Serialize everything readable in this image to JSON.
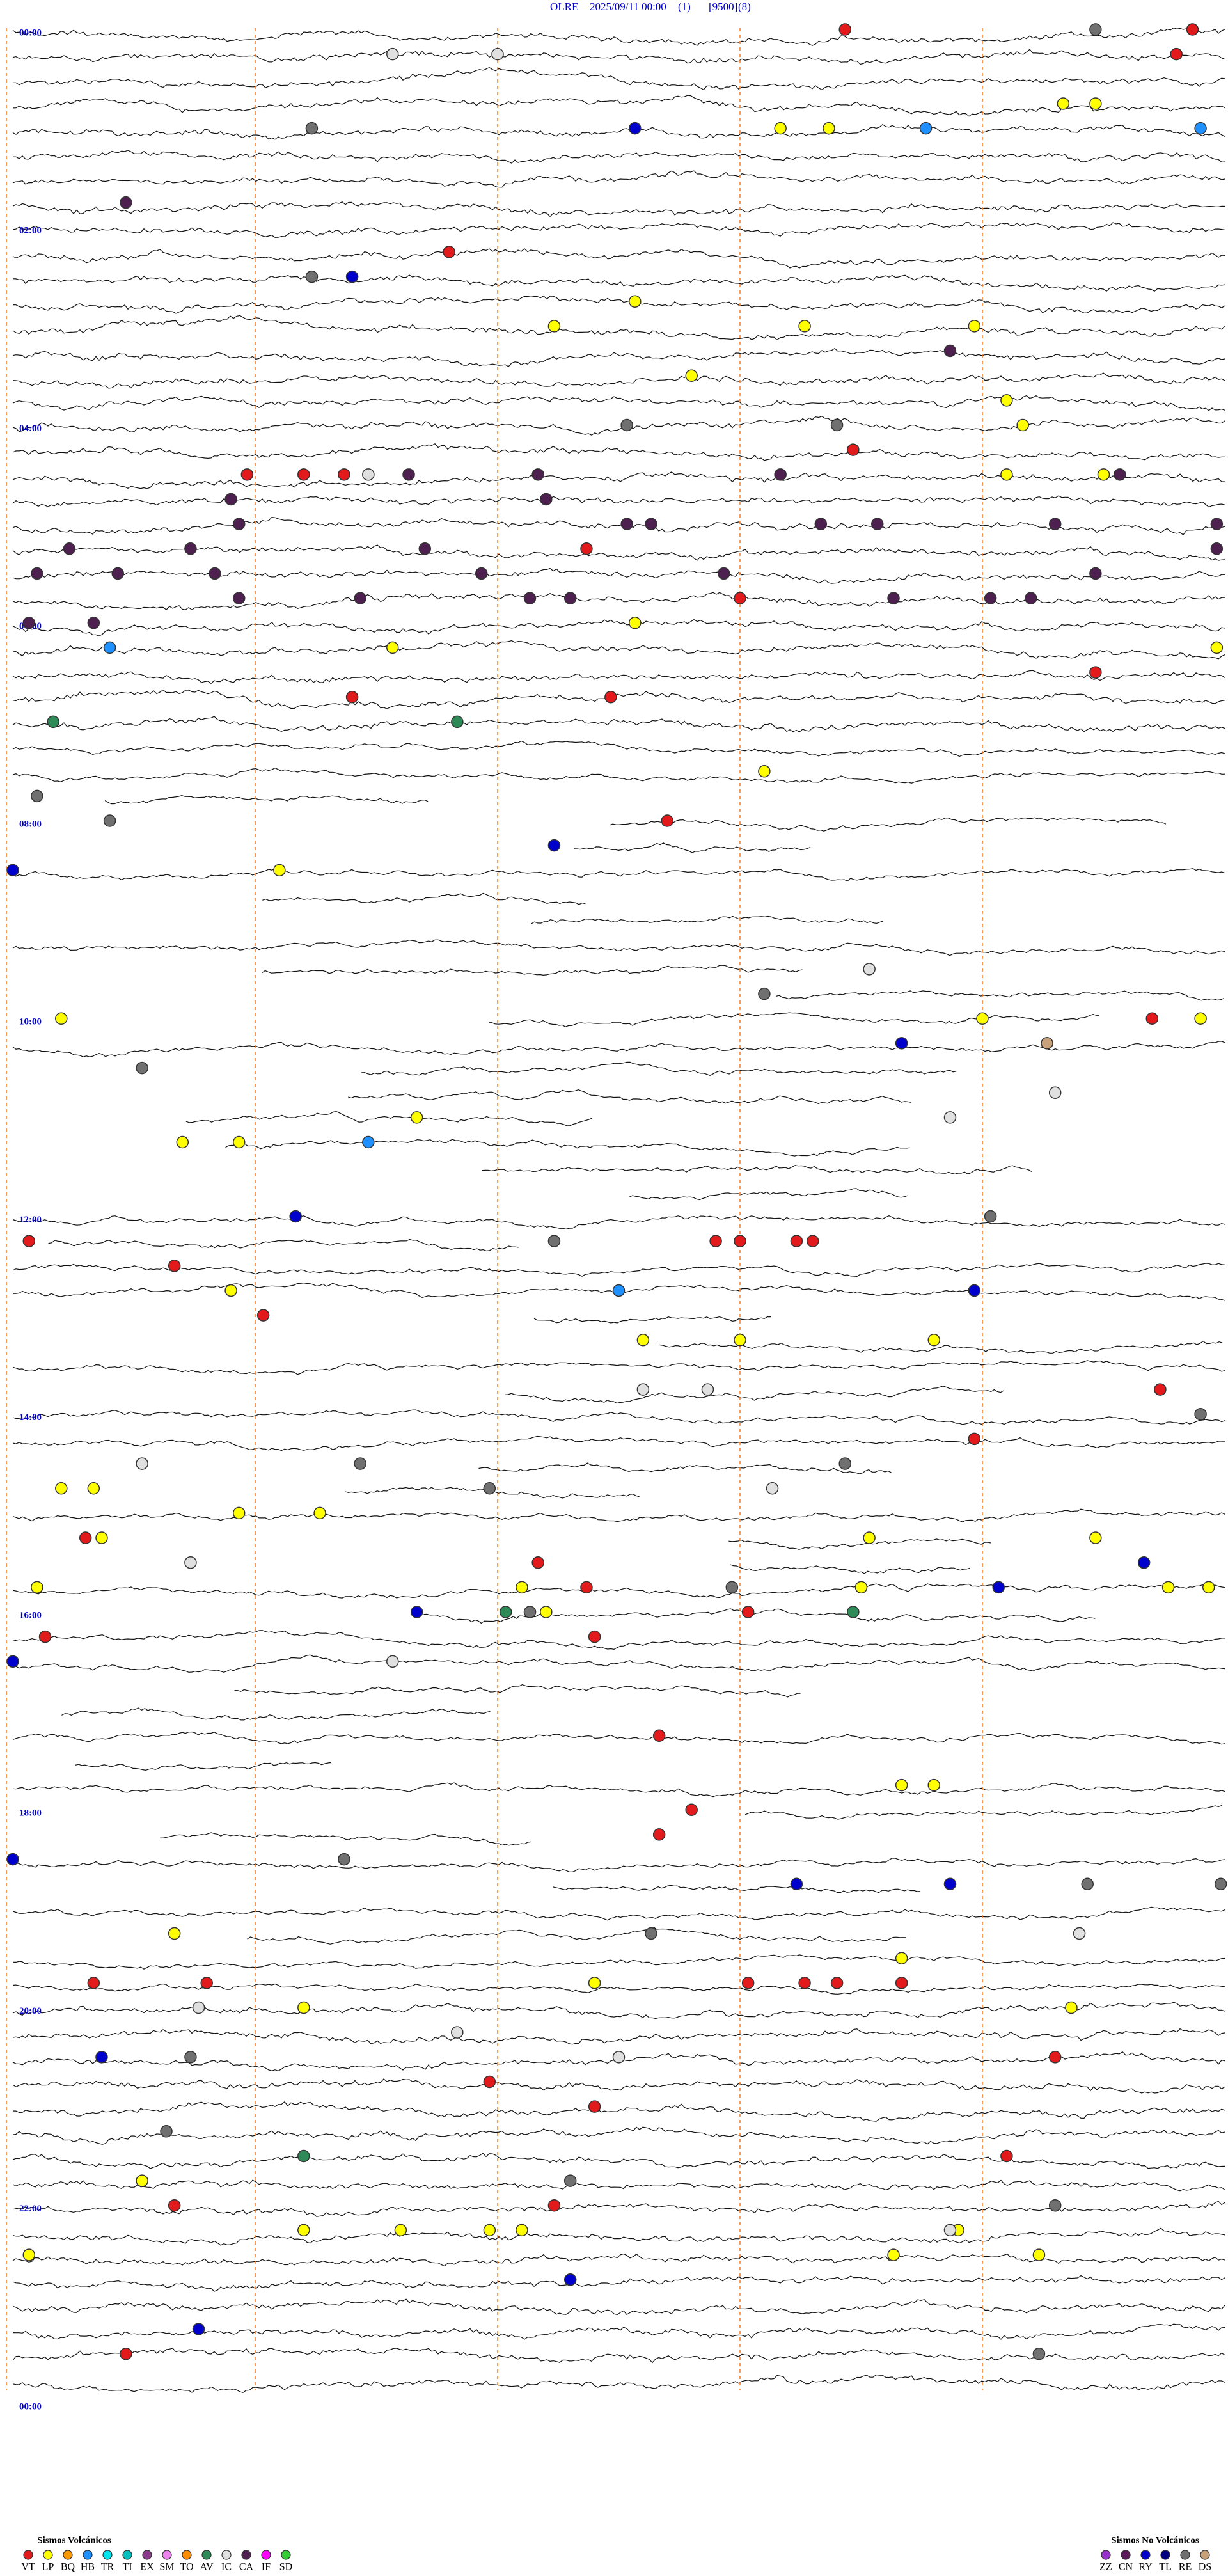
{
  "chart_data": {
    "type": "helicorder",
    "header": [
      "OLRE",
      "2025/09/11 00:00",
      "(1)",
      "[9500]",
      "(8)"
    ],
    "minutes_per_row": 15,
    "rows": 96,
    "marker_every_minutes": 3,
    "time_labels": [
      "00:00",
      "02:00",
      "04:00",
      "06:00",
      "08:00",
      "10:00",
      "12:00",
      "14:00",
      "16:00",
      "18:00",
      "20:00",
      "22:00",
      "00:00"
    ],
    "legend_volcanic": {
      "title": "Sismos Volcánicos",
      "items": [
        {
          "code": "VT",
          "color": "#e31a1c"
        },
        {
          "code": "LP",
          "color": "#ffff00"
        },
        {
          "code": "BQ",
          "color": "#ff9900"
        },
        {
          "code": "HB",
          "color": "#1e90ff"
        },
        {
          "code": "TR",
          "color": "#00e5ee"
        },
        {
          "code": "TI",
          "color": "#00bfbf"
        },
        {
          "code": "EX",
          "color": "#8b3a8b"
        },
        {
          "code": "SM",
          "color": "#ee82ee"
        },
        {
          "code": "TO",
          "color": "#ff8c00"
        },
        {
          "code": "AV",
          "color": "#2e8b57"
        },
        {
          "code": "IC",
          "color": "#e0e0e0"
        },
        {
          "code": "CA",
          "color": "#4d2050"
        },
        {
          "code": "IF",
          "color": "#ff00ff"
        },
        {
          "code": "SD",
          "color": "#33cc33"
        }
      ]
    },
    "legend_non_volcanic": {
      "title": "Sismos No Volcánicos",
      "items": [
        {
          "code": "ZZ",
          "color": "#9932cc"
        },
        {
          "code": "CN",
          "color": "#5a1a5a"
        },
        {
          "code": "RY",
          "color": "#0000cc"
        },
        {
          "code": "TL",
          "color": "#000080"
        },
        {
          "code": "RE",
          "color": "#707070"
        },
        {
          "code": "DS",
          "color": "#c8a07a"
        }
      ]
    },
    "events": [
      {
        "minute": 10.3,
        "type": "VT"
      },
      {
        "minute": 14.6,
        "type": "VT"
      },
      {
        "minute": 29.4,
        "type": "VT"
      },
      {
        "minute": 13.4,
        "type": "RE"
      },
      {
        "minute": 19.7,
        "type": "IC"
      },
      {
        "minute": 21.0,
        "type": "IC"
      },
      {
        "minute": 67.7,
        "type": "RY"
      },
      {
        "minute": 69.5,
        "type": "LP"
      },
      {
        "minute": 70.1,
        "type": "LP"
      },
      {
        "minute": 71.3,
        "type": "HB"
      },
      {
        "minute": 74.7,
        "type": "HB"
      },
      {
        "minute": 58.0,
        "type": "LP"
      },
      {
        "minute": 58.4,
        "type": "LP"
      },
      {
        "minute": 63.7,
        "type": "RE"
      },
      {
        "minute": 106.4,
        "type": "CA"
      },
      {
        "minute": 154.2,
        "type": "RY"
      },
      {
        "minute": 140.4,
        "type": "VT"
      },
      {
        "minute": 153.7,
        "type": "RE"
      },
      {
        "minute": 186.7,
        "type": "LP"
      },
      {
        "minute": 172.7,
        "type": "LP"
      },
      {
        "minute": 189.8,
        "type": "LP"
      },
      {
        "minute": 191.9,
        "type": "LP"
      },
      {
        "minute": 206.6,
        "type": "CA"
      },
      {
        "minute": 218.4,
        "type": "LP"
      },
      {
        "minute": 237.3,
        "type": "LP"
      },
      {
        "minute": 252.5,
        "type": "LP"
      },
      {
        "minute": 247.6,
        "type": "RE"
      },
      {
        "minute": 250.2,
        "type": "RE"
      },
      {
        "minute": 265.4,
        "type": "VT"
      },
      {
        "minute": 272.9,
        "type": "VT"
      },
      {
        "minute": 273.6,
        "type": "VT"
      },
      {
        "minute": 274.1,
        "type": "VT"
      },
      {
        "minute": 274.4,
        "type": "IC"
      },
      {
        "minute": 274.9,
        "type": "CA"
      },
      {
        "minute": 276.5,
        "type": "CA"
      },
      {
        "minute": 282.3,
        "type": "LP"
      },
      {
        "minute": 283.5,
        "type": "LP"
      },
      {
        "minute": 322.1,
        "type": "VT"
      },
      {
        "minute": 354.0,
        "type": "VT"
      },
      {
        "minute": 367.7,
        "type": "LP"
      },
      {
        "minute": 389.9,
        "type": "LP"
      },
      {
        "minute": 376.2,
        "type": "HB"
      },
      {
        "minute": 379.7,
        "type": "LP"
      },
      {
        "minute": 412.4,
        "type": "VT"
      },
      {
        "minute": 409.2,
        "type": "VT"
      },
      {
        "minute": 425.5,
        "type": "AV"
      },
      {
        "minute": 403.4,
        "type": "VT"
      },
      {
        "minute": 420.5,
        "type": "AV"
      },
      {
        "minute": 459.3,
        "type": "LP"
      },
      {
        "minute": 488.1,
        "type": "VT"
      },
      {
        "minute": 481.2,
        "type": "RE"
      },
      {
        "minute": 465.3,
        "type": "RE"
      },
      {
        "minute": 501.7,
        "type": "RY"
      },
      {
        "minute": 513.3,
        "type": "LP"
      },
      {
        "minute": 510.0,
        "type": "RY"
      },
      {
        "minute": 594.3,
        "type": "RE"
      },
      {
        "minute": 580.6,
        "type": "IC"
      },
      {
        "minute": 600.6,
        "type": "LP"
      },
      {
        "minute": 612.0,
        "type": "LP"
      },
      {
        "minute": 627.8,
        "type": "DS"
      },
      {
        "minute": 614.1,
        "type": "VT"
      },
      {
        "minute": 614.7,
        "type": "LP"
      },
      {
        "minute": 626.0,
        "type": "RY"
      },
      {
        "minute": 657.9,
        "type": "IC"
      },
      {
        "minute": 631.6,
        "type": "RE"
      },
      {
        "minute": 665.0,
        "type": "LP"
      },
      {
        "minute": 677.1,
        "type": "LP"
      },
      {
        "minute": 677.8,
        "type": "LP"
      },
      {
        "minute": 679.4,
        "type": "HB"
      },
      {
        "minute": 671.6,
        "type": "IC"
      },
      {
        "minute": 723.5,
        "type": "RY"
      },
      {
        "minute": 732.1,
        "type": "RE"
      },
      {
        "minute": 741.7,
        "type": "RE"
      },
      {
        "minute": 735.2,
        "type": "VT"
      },
      {
        "minute": 752.0,
        "type": "VT"
      },
      {
        "minute": 743.7,
        "type": "VT"
      },
      {
        "minute": 744.0,
        "type": "VT"
      },
      {
        "minute": 744.7,
        "type": "VT"
      },
      {
        "minute": 744.9,
        "type": "VT"
      },
      {
        "minute": 772.5,
        "type": "HB"
      },
      {
        "minute": 767.7,
        "type": "LP"
      },
      {
        "minute": 776.9,
        "type": "RY"
      },
      {
        "minute": 783.1,
        "type": "VT"
      },
      {
        "minute": 802.8,
        "type": "LP"
      },
      {
        "minute": 804.0,
        "type": "LP"
      },
      {
        "minute": 806.4,
        "type": "LP"
      },
      {
        "minute": 832.8,
        "type": "IC"
      },
      {
        "minute": 833.6,
        "type": "IC"
      },
      {
        "minute": 839.2,
        "type": "VT"
      },
      {
        "minute": 854.7,
        "type": "RE"
      },
      {
        "minute": 866.9,
        "type": "VT"
      },
      {
        "minute": 874.3,
        "type": "RE"
      },
      {
        "minute": 885.6,
        "type": "LP"
      },
      {
        "minute": 886.0,
        "type": "LP"
      },
      {
        "minute": 871.6,
        "type": "IC"
      },
      {
        "minute": 880.3,
        "type": "RE"
      },
      {
        "minute": 894.4,
        "type": "IC"
      },
      {
        "minute": 890.9,
        "type": "RE"
      },
      {
        "minute": 903.8,
        "type": "LP"
      },
      {
        "minute": 902.8,
        "type": "LP"
      },
      {
        "minute": 915.9,
        "type": "VT"
      },
      {
        "minute": 916.1,
        "type": "LP"
      },
      {
        "minute": 932.2,
        "type": "IC"
      },
      {
        "minute": 925.6,
        "type": "LP"
      },
      {
        "minute": 928.4,
        "type": "LP"
      },
      {
        "minute": 944.0,
        "type": "RY"
      },
      {
        "minute": 936.5,
        "type": "VT"
      },
      {
        "minute": 952.1,
        "type": "VT"
      },
      {
        "minute": 951.3,
        "type": "LP"
      },
      {
        "minute": 966.6,
        "type": "LP"
      },
      {
        "minute": 953.9,
        "type": "RE"
      },
      {
        "minute": 955.5,
        "type": "LP"
      },
      {
        "minute": 970.4,
        "type": "AV"
      },
      {
        "minute": 957.2,
        "type": "RY"
      },
      {
        "minute": 959.3,
        "type": "LP"
      },
      {
        "minute": 959.8,
        "type": "LP"
      },
      {
        "minute": 945.3,
        "type": "LP"
      },
      {
        "minute": 965.0,
        "type": "RY"
      },
      {
        "minute": 966.1,
        "type": "AV"
      },
      {
        "minute": 966.4,
        "type": "RE"
      },
      {
        "minute": 975.4,
        "type": "VT"
      },
      {
        "minute": 982.2,
        "type": "VT"
      },
      {
        "minute": 969.1,
        "type": "VT"
      },
      {
        "minute": 994.7,
        "type": "IC"
      },
      {
        "minute": 990.0,
        "type": "RY"
      },
      {
        "minute": 1043.0,
        "type": "VT"
      },
      {
        "minute": 1076.0,
        "type": "LP"
      },
      {
        "minute": 1076.4,
        "type": "LP"
      },
      {
        "minute": 1088.4,
        "type": "VT"
      },
      {
        "minute": 1103.0,
        "type": "VT"
      },
      {
        "minute": 1114.1,
        "type": "RE"
      },
      {
        "minute": 1134.7,
        "type": "RY"
      },
      {
        "minute": 1136.6,
        "type": "RY"
      },
      {
        "minute": 1138.3,
        "type": "RE"
      },
      {
        "minute": 1139.95,
        "type": "RE"
      },
      {
        "minute": 1110.0,
        "type": "RY"
      },
      {
        "minute": 1162.9,
        "type": "RE"
      },
      {
        "minute": 1168.2,
        "type": "IC"
      },
      {
        "minute": 1157.0,
        "type": "LP"
      },
      {
        "minute": 1187.4,
        "type": "VT"
      },
      {
        "minute": 1186.0,
        "type": "VT"
      },
      {
        "minute": 1192.2,
        "type": "LP"
      },
      {
        "minute": 1194.1,
        "type": "VT"
      },
      {
        "minute": 1194.8,
        "type": "VT"
      },
      {
        "minute": 1195.2,
        "type": "VT"
      },
      {
        "minute": 1181.0,
        "type": "LP"
      },
      {
        "minute": 1196.0,
        "type": "VT"
      },
      {
        "minute": 1202.3,
        "type": "IC"
      },
      {
        "minute": 1203.6,
        "type": "LP"
      },
      {
        "minute": 1213.1,
        "type": "LP"
      },
      {
        "minute": 1242.9,
        "type": "VT"
      },
      {
        "minute": 1231.1,
        "type": "RY"
      },
      {
        "minute": 1232.2,
        "type": "RE"
      },
      {
        "minute": 1220.5,
        "type": "IC"
      },
      {
        "minute": 1237.5,
        "type": "IC"
      },
      {
        "minute": 1250.9,
        "type": "VT"
      },
      {
        "minute": 1267.2,
        "type": "VT"
      },
      {
        "minute": 1276.9,
        "type": "RE"
      },
      {
        "minute": 1302.3,
        "type": "VT"
      },
      {
        "minute": 1293.6,
        "type": "AV"
      },
      {
        "minute": 1306.6,
        "type": "LP"
      },
      {
        "minute": 1322.0,
        "type": "VT"
      },
      {
        "minute": 1311.9,
        "type": "RE"
      },
      {
        "minute": 1326.7,
        "type": "VT"
      },
      {
        "minute": 1332.9,
        "type": "RE"
      },
      {
        "minute": 1346.7,
        "type": "LP"
      },
      {
        "minute": 1338.6,
        "type": "LP"
      },
      {
        "minute": 1339.8,
        "type": "LP"
      },
      {
        "minute": 1340.9,
        "type": "LP"
      },
      {
        "minute": 1341.3,
        "type": "LP"
      },
      {
        "minute": 1350.2,
        "type": "LP"
      },
      {
        "minute": 1360.9,
        "type": "LP"
      },
      {
        "minute": 1346.6,
        "type": "IC"
      },
      {
        "minute": 1362.7,
        "type": "LP"
      },
      {
        "minute": 1371.9,
        "type": "RY"
      },
      {
        "minute": 1397.3,
        "type": "RY"
      },
      {
        "minute": 1411.4,
        "type": "VT"
      },
      {
        "minute": 1422.7,
        "type": "RE"
      },
      {
        "minute": 287.7,
        "type": "CA"
      },
      {
        "minute": 302.8,
        "type": "CA"
      },
      {
        "minute": 317.2,
        "type": "CA"
      },
      {
        "minute": 332.5,
        "type": "CA"
      },
      {
        "minute": 330.3,
        "type": "CA"
      },
      {
        "minute": 315.7,
        "type": "CA"
      },
      {
        "minute": 331.3,
        "type": "CA"
      },
      {
        "minute": 360.2,
        "type": "CA"
      },
      {
        "minute": 361.0,
        "type": "CA"
      },
      {
        "minute": 347.8,
        "type": "CA"
      },
      {
        "minute": 349.3,
        "type": "CA"
      },
      {
        "minute": 320.1,
        "type": "CA"
      },
      {
        "minute": 335.8,
        "type": "CA"
      },
      {
        "minute": 291.6,
        "type": "CA"
      },
      {
        "minute": 351.4,
        "type": "CA"
      },
      {
        "minute": 351.9,
        "type": "CA"
      },
      {
        "minute": 307.6,
        "type": "CA"
      },
      {
        "minute": 307.9,
        "type": "CA"
      },
      {
        "minute": 279.5,
        "type": "CA"
      },
      {
        "minute": 310.0,
        "type": "CA"
      },
      {
        "minute": 310.7,
        "type": "CA"
      },
      {
        "minute": 355.9,
        "type": "CA"
      },
      {
        "minute": 357.1,
        "type": "CA"
      },
      {
        "minute": 312.9,
        "type": "CA"
      },
      {
        "minute": 283.7,
        "type": "CA"
      },
      {
        "minute": 314.9,
        "type": "CA"
      },
      {
        "minute": 357.6,
        "type": "CA"
      },
      {
        "minute": 343.4,
        "type": "CA"
      },
      {
        "minute": 329.9,
        "type": "CA"
      },
      {
        "minute": 338.8,
        "type": "CA"
      }
    ]
  }
}
